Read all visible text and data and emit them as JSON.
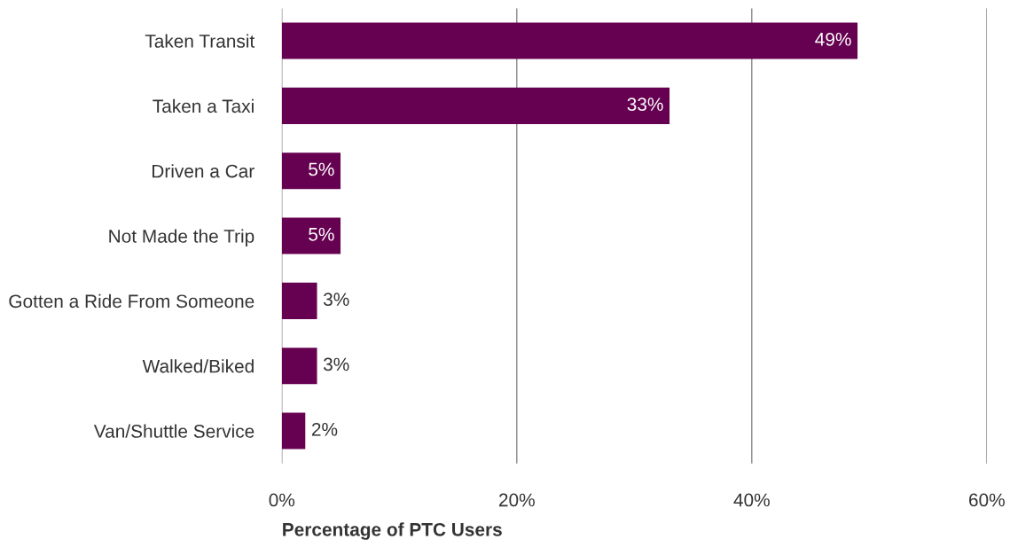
{
  "chart_data": {
    "type": "bar",
    "orientation": "horizontal",
    "categories": [
      "Taken Transit",
      "Taken a Taxi",
      "Driven a Car",
      "Not Made the Trip",
      "Gotten a Ride From Someone",
      "Walked/Biked",
      "Van/Shuttle Service"
    ],
    "values": [
      49,
      33,
      5,
      5,
      3,
      3,
      2
    ],
    "value_labels": [
      "49%",
      "33%",
      "5%",
      "5%",
      "3%",
      "3%",
      "2%"
    ],
    "color": "#660050",
    "xlim": [
      0,
      60
    ],
    "xticks": [
      {
        "value": 0,
        "label": "0%"
      },
      {
        "value": 20,
        "label": "20%"
      },
      {
        "value": 40,
        "label": "40%"
      },
      {
        "value": 60,
        "label": "60%"
      }
    ],
    "xlabel": "Percentage of PTC Users",
    "grid": "x"
  }
}
